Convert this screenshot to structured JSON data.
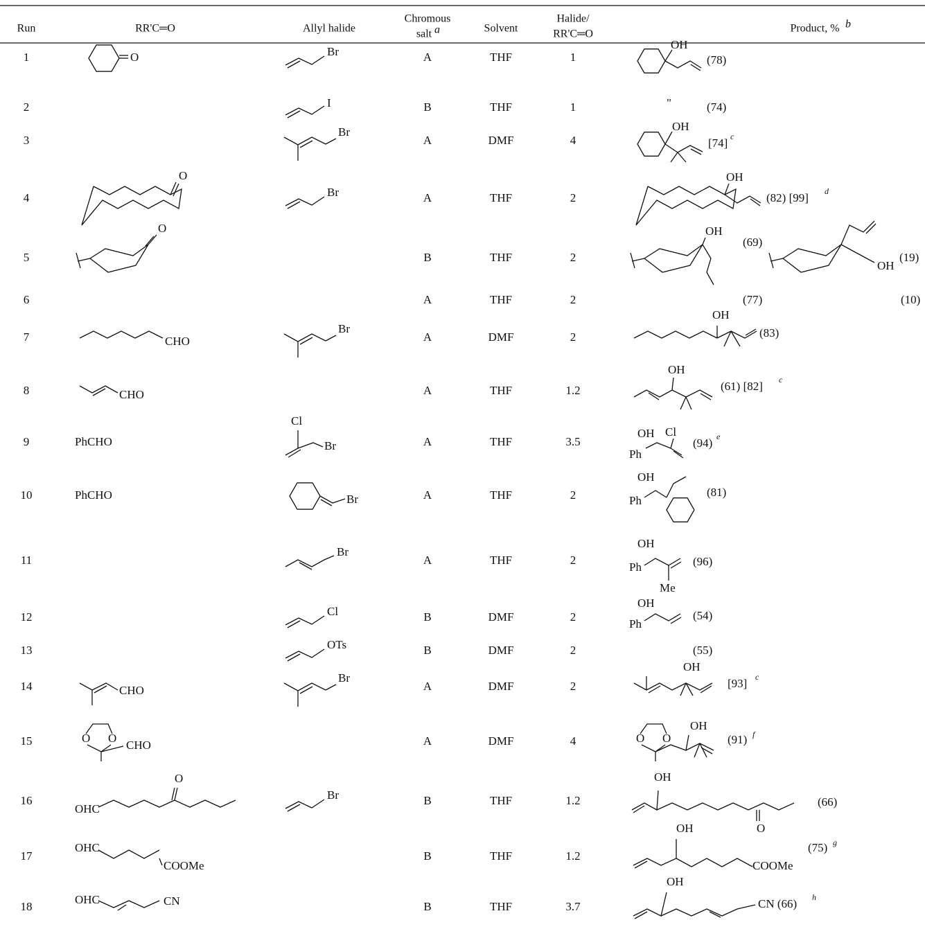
{
  "table": {
    "header": {
      "run": "Run",
      "carbonyl": "RR'C═O",
      "allyl_halide": "Allyl halide",
      "salt": "Chromous",
      "salt2": "salt",
      "salt_note": "a",
      "solvent": "Solvent",
      "ratio": "Halide/",
      "ratio2": "RR'C═O",
      "product": "Product, %",
      "product_note": "b"
    },
    "rows": [
      {
        "run": "1",
        "carbonyl": [
          "O"
        ],
        "halide": [
          "Br"
        ],
        "salt": "A",
        "solvent": "THF",
        "ratio": "1",
        "product": [
          "OH",
          "(78)"
        ]
      },
      {
        "run": "2",
        "carbonyl": [],
        "halide": [
          "I"
        ],
        "salt": "B",
        "solvent": "THF",
        "ratio": "1",
        "product": [
          "\"",
          "(74)"
        ]
      },
      {
        "run": "3",
        "carbonyl": [],
        "halide": [
          "Br"
        ],
        "salt": "A",
        "solvent": "DMF",
        "ratio": "4",
        "product": [
          "OH",
          "[74]",
          "c"
        ]
      },
      {
        "run": "4",
        "carbonyl": [
          "O"
        ],
        "halide": [
          "Br"
        ],
        "salt": "A",
        "solvent": "THF",
        "ratio": "2",
        "product": [
          "OH",
          "(82) [99]",
          "d"
        ]
      },
      {
        "run": "5",
        "carbonyl": [
          "O"
        ],
        "halide": [],
        "salt": "B",
        "solvent": "THF",
        "ratio": "2",
        "product": [
          "OH",
          "(69)",
          "OH",
          "(19)"
        ]
      },
      {
        "run": "6",
        "carbonyl": [],
        "halide": [],
        "salt": "A",
        "solvent": "THF",
        "ratio": "2",
        "product": [
          "(77)",
          "(10)"
        ]
      },
      {
        "run": "7",
        "carbonyl": [
          "CHO"
        ],
        "halide": [
          "Br"
        ],
        "salt": "A",
        "solvent": "DMF",
        "ratio": "2",
        "product": [
          "OH",
          "(83)"
        ]
      },
      {
        "run": "8",
        "carbonyl": [
          "CHO"
        ],
        "halide": [],
        "salt": "A",
        "solvent": "THF",
        "ratio": "1.2",
        "product": [
          "OH",
          "(61) [82]",
          "c"
        ]
      },
      {
        "run": "9",
        "carbonyl": [
          "PhCHO"
        ],
        "halide": [
          "Cl",
          "Br"
        ],
        "salt": "A",
        "solvent": "THF",
        "ratio": "3.5",
        "product": [
          "OH",
          "Cl",
          "Ph",
          "(94)",
          "e"
        ]
      },
      {
        "run": "10",
        "carbonyl": [
          "PhCHO"
        ],
        "halide": [
          "Br"
        ],
        "salt": "A",
        "solvent": "THF",
        "ratio": "2",
        "product": [
          "OH",
          "Ph",
          "(81)"
        ]
      },
      {
        "run": "11",
        "carbonyl": [],
        "halide": [
          "Br"
        ],
        "salt": "A",
        "solvent": "THF",
        "ratio": "2",
        "product": [
          "OH",
          "Ph",
          "(96)",
          "Me"
        ]
      },
      {
        "run": "12",
        "carbonyl": [],
        "halide": [
          "Cl"
        ],
        "salt": "B",
        "solvent": "DMF",
        "ratio": "2",
        "product": [
          "OH",
          "Ph",
          "(54)"
        ]
      },
      {
        "run": "13",
        "carbonyl": [],
        "halide": [
          "OTs"
        ],
        "salt": "B",
        "solvent": "DMF",
        "ratio": "2",
        "product": [
          "(55)"
        ]
      },
      {
        "run": "14",
        "carbonyl": [
          "CHO"
        ],
        "halide": [
          "Br"
        ],
        "salt": "A",
        "solvent": "DMF",
        "ratio": "2",
        "product": [
          "OH",
          "[93]",
          "c"
        ]
      },
      {
        "run": "15",
        "carbonyl": [
          "O",
          "O",
          "CHO"
        ],
        "halide": [],
        "salt": "A",
        "solvent": "DMF",
        "ratio": "4",
        "product": [
          "O",
          "O",
          "OH",
          "(91)",
          "f"
        ]
      },
      {
        "run": "16",
        "carbonyl": [
          "OHC",
          "O"
        ],
        "halide": [
          "Br"
        ],
        "salt": "B",
        "solvent": "THF",
        "ratio": "1.2",
        "product": [
          "OH",
          "O",
          "(66)"
        ]
      },
      {
        "run": "17",
        "carbonyl": [
          "OHC",
          "COOMe"
        ],
        "halide": [],
        "salt": "B",
        "solvent": "THF",
        "ratio": "1.2",
        "product": [
          "OH",
          "COOMe",
          "(75)",
          "g"
        ]
      },
      {
        "run": "18",
        "carbonyl": [
          "OHC",
          "CN"
        ],
        "halide": [],
        "salt": "B",
        "solvent": "THF",
        "ratio": "3.7",
        "product": [
          "OH",
          "CN (66)",
          "h"
        ]
      }
    ]
  }
}
